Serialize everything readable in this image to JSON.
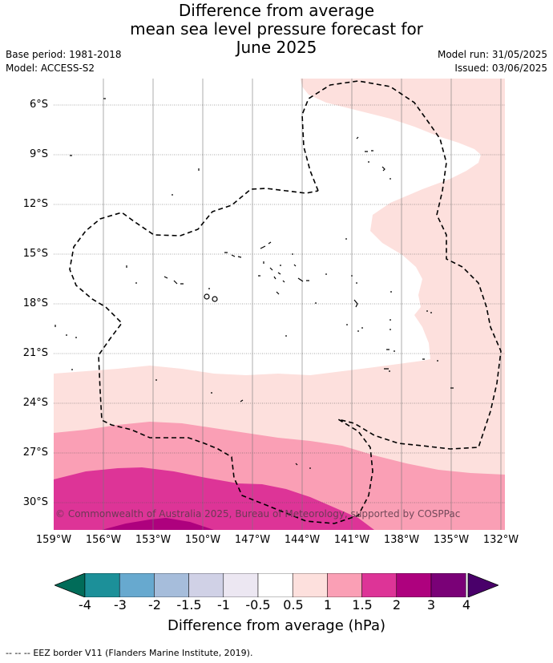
{
  "header": {
    "title_lines": [
      "Difference from average",
      "mean sea level pressure forecast for",
      "June 2025"
    ],
    "base_period": "Base period: 1981-2018",
    "model": "Model: ACCESS-S2",
    "model_run": "Model run: 31/05/2025",
    "issued": "Issued: 03/06/2025"
  },
  "map": {
    "lat_labels": [
      "6°S",
      "9°S",
      "12°S",
      "15°S",
      "18°S",
      "21°S",
      "24°S",
      "27°S",
      "30°S"
    ],
    "lon_labels": [
      "159°W",
      "156°W",
      "153°W",
      "150°W",
      "147°W",
      "144°W",
      "141°W",
      "138°W",
      "135°W",
      "132°W"
    ],
    "copyright": "© Commonwealth of Australia 2025, Bureau of Meteorology, supported by COSPPac",
    "colors": {
      "band_0p5_1": "#fde0dd",
      "band_1_1p5": "#fa9fb5",
      "band_1p5_2": "#dd3497",
      "band_2_3": "#ae017e"
    }
  },
  "colorbar": {
    "title": "Difference from average (hPa)",
    "ticks": [
      "-4",
      "-3",
      "-2",
      "-1.5",
      "-1",
      "-0.5",
      "0.5",
      "1",
      "1.5",
      "2",
      "3",
      "4"
    ],
    "colors": [
      "#016c59",
      "#1c9099",
      "#67a9cf",
      "#a6bddb",
      "#d0d1e6",
      "#ece7f2",
      "#ffffff",
      "#fde0dd",
      "#fa9fb5",
      "#dd3497",
      "#ae017e",
      "#7a0177",
      "#49006a"
    ]
  },
  "legend": {
    "eez_label": "EEZ border V11 (Flanders Marine Institute, 2019).",
    "eez_dash": "-- -- --"
  }
}
